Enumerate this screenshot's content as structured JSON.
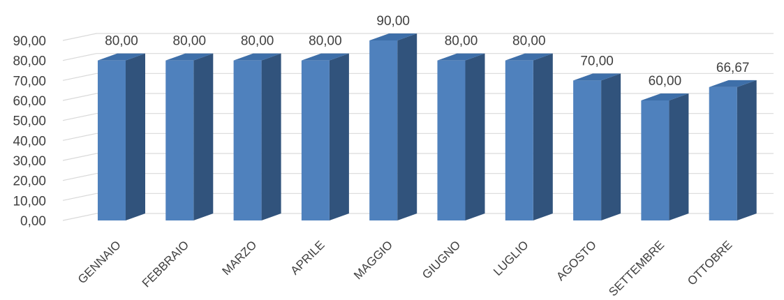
{
  "chart_data": {
    "type": "bar",
    "style": "3d-clustered-column",
    "categories": [
      "GENNAIO",
      "FEBBRAIO",
      "MARZO",
      "APRILE",
      "MAGGIO",
      "GIUGNO",
      "LUGLIO",
      "AGOSTO",
      "SETTEMBRE",
      "OTTOBRE"
    ],
    "values": [
      80,
      80,
      80,
      80,
      90,
      80,
      80,
      70,
      60,
      66.67
    ],
    "data_labels": [
      "80,00",
      "80,00",
      "80,00",
      "80,00",
      "90,00",
      "80,00",
      "80,00",
      "70,00",
      "60,00",
      "66,67"
    ],
    "y_ticks": [
      "0,00",
      "10,00",
      "20,00",
      "30,00",
      "40,00",
      "50,00",
      "60,00",
      "70,00",
      "80,00",
      "90,00"
    ],
    "ylim": [
      0,
      90
    ],
    "title": "",
    "xlabel": "",
    "ylabel": "",
    "grid": true,
    "legend": "none",
    "colors": {
      "bar_front": "#4f81bd",
      "bar_side": "#31537c",
      "bar_top": "#3e6fa9",
      "grid": "#d9d9d9",
      "text": "#404040"
    }
  }
}
